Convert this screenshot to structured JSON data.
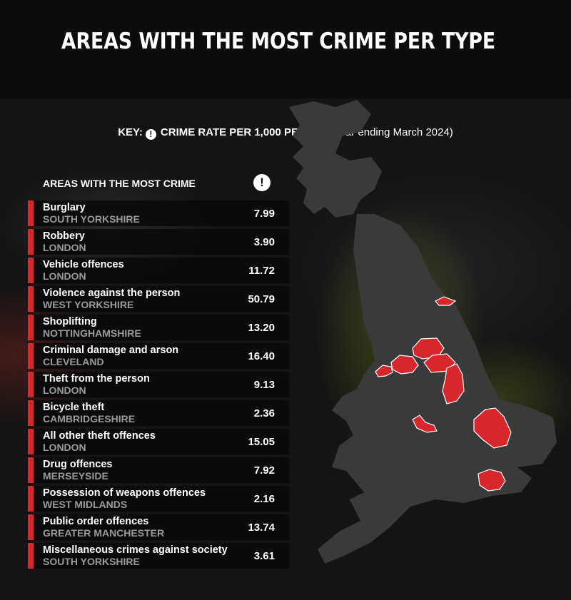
{
  "title": "AREAS WITH THE MOST CRIME PER TYPE",
  "key": {
    "label": "KEY:",
    "icon": "exclamation-icon",
    "icon_glyph": "!",
    "measure": "CRIME RATE PER 1,000 PEOPLE",
    "period": "(year ending March 2024)"
  },
  "table": {
    "header": "AREAS WITH THE MOST CRIME",
    "header_icon_glyph": "!",
    "accent_color": "#d7262c",
    "rows": [
      {
        "crime": "Burglary",
        "area": "SOUTH YORKSHIRE",
        "rate": "7.99"
      },
      {
        "crime": "Robbery",
        "area": "LONDON",
        "rate": "3.90"
      },
      {
        "crime": "Vehicle offences",
        "area": "LONDON",
        "rate": "11.72"
      },
      {
        "crime": "Violence against the person",
        "area": "WEST YORKSHIRE",
        "rate": "50.79"
      },
      {
        "crime": "Shoplifting",
        "area": "NOTTINGHAMSHIRE",
        "rate": "13.20"
      },
      {
        "crime": "Criminal damage and arson",
        "area": "CLEVELAND",
        "rate": "16.40"
      },
      {
        "crime": "Theft from the person",
        "area": "LONDON",
        "rate": "9.13"
      },
      {
        "crime": "Bicycle theft",
        "area": "CAMBRIDGESHIRE",
        "rate": "2.36"
      },
      {
        "crime": "All other theft offences",
        "area": "LONDON",
        "rate": "15.05"
      },
      {
        "crime": "Drug offences",
        "area": "MERSEYSIDE",
        "rate": "7.92"
      },
      {
        "crime": "Possession of weapons offences",
        "area": "WEST MIDLANDS",
        "rate": "2.16"
      },
      {
        "crime": "Public order offences",
        "area": "GREATER MANCHESTER",
        "rate": "13.74"
      },
      {
        "crime": "Miscellaneous crimes against society",
        "area": "SOUTH YORKSHIRE",
        "rate": "3.61"
      }
    ]
  },
  "map": {
    "land_color": "#3b3b3b",
    "highlight_color": "#d7262c",
    "highlighted_regions": [
      "Cleveland",
      "Merseyside",
      "Greater Manchester",
      "West Yorkshire",
      "South Yorkshire",
      "Nottinghamshire",
      "West Midlands",
      "Cambridgeshire",
      "London"
    ]
  }
}
